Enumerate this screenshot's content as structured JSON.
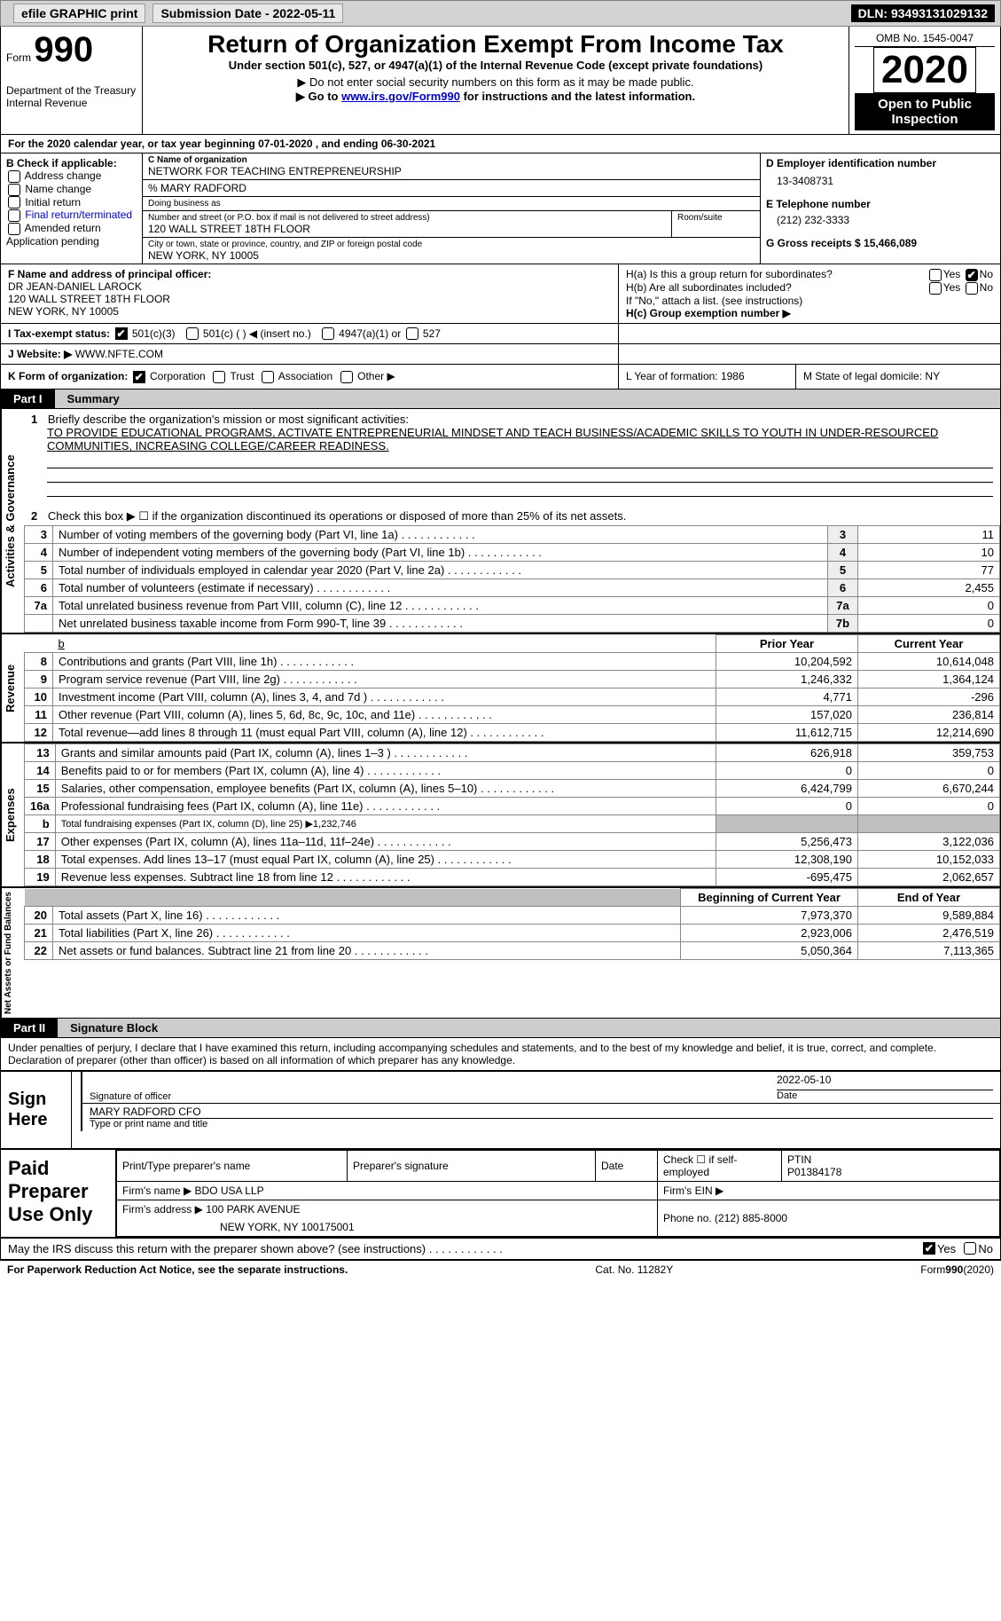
{
  "topbar": {
    "efile": "efile GRAPHIC print",
    "sub_label": "Submission Date - 2022-05-11",
    "dln": "DLN: 93493131029132"
  },
  "header": {
    "form": "Form",
    "form_no": "990",
    "dept": "Department of the Treasury",
    "irs": "Internal Revenue",
    "title": "Return of Organization Exempt From Income Tax",
    "subtitle": "Under section 501(c), 527, or 4947(a)(1) of the Internal Revenue Code (except private foundations)",
    "note1": "▶ Do not enter social security numbers on this form as it may be made public.",
    "note2_pre": "▶ Go to ",
    "note2_link": "www.irs.gov/Form990",
    "note2_post": " for instructions and the latest information.",
    "omb": "OMB No. 1545-0047",
    "year": "2020",
    "open": "Open to Public Inspection"
  },
  "line_a": "For the 2020 calendar year, or tax year beginning 07-01-2020   , and ending 06-30-2021",
  "box_b": {
    "label": "B Check if applicable:",
    "items": [
      "Address change",
      "Name change",
      "Initial return",
      "Final return/terminated",
      "Amended return",
      "Application pending"
    ]
  },
  "box_c": {
    "c_label": "C Name of organization",
    "name": "NETWORK FOR TEACHING ENTREPRENEURSHIP",
    "care_of": "% MARY RADFORD",
    "dba": "Doing business as",
    "addr_label": "Number and street (or P.O. box if mail is not delivered to street address)",
    "room": "Room/suite",
    "addr": "120 WALL STREET 18TH FLOOR",
    "city_label": "City or town, state or province, country, and ZIP or foreign postal code",
    "city": "NEW YORK, NY  10005"
  },
  "box_d": {
    "label": "D Employer identification number",
    "value": "13-3408731"
  },
  "box_e": {
    "label": "E Telephone number",
    "value": "(212) 232-3333"
  },
  "box_g": {
    "label": "G Gross receipts $ 15,466,089"
  },
  "box_f": {
    "label": "F  Name and address of principal officer:",
    "l1": "DR JEAN-DANIEL LAROCK",
    "l2": "120 WALL STREET 18TH FLOOR",
    "l3": "NEW YORK, NY  10005"
  },
  "box_h": {
    "a_q": "H(a)  Is this a group return for subordinates?",
    "b_q": "H(b)  Are all subordinates included?",
    "b_note": "If \"No,\" attach a list. (see instructions)",
    "c": "H(c)  Group exemption number ▶"
  },
  "box_i": {
    "label": "I    Tax-exempt status:",
    "o1": "501(c)(3)",
    "o2": "501(c) (  ) ◀ (insert no.)",
    "o3": "4947(a)(1) or",
    "o4": "527"
  },
  "box_j": {
    "label": "J    Website: ▶",
    "value": "WWW.NFTE.COM"
  },
  "box_k": {
    "label": "K Form of organization:",
    "o1": "Corporation",
    "o2": "Trust",
    "o3": "Association",
    "o4": "Other ▶"
  },
  "box_l": {
    "label": "L Year of formation: 1986"
  },
  "box_m": {
    "label": "M State of legal domicile: NY"
  },
  "part1": {
    "tab": "Part I",
    "title": "Summary"
  },
  "gov": {
    "label": "Activities & Governance",
    "l1_label": "Briefly describe the organization's mission or most significant activities:",
    "l1_text": "TO PROVIDE EDUCATIONAL PROGRAMS, ACTIVATE ENTREPRENEURIAL MINDSET AND TEACH BUSINESS/ACADEMIC SKILLS TO YOUTH IN UNDER-RESOURCED COMMUNITIES, INCREASING COLLEGE/CAREER READINESS.",
    "l2": "Check this box ▶ ☐ if the organization discontinued its operations or disposed of more than 25% of its net assets.",
    "lines": [
      {
        "n": "3",
        "d": "Number of voting members of the governing body (Part VI, line 1a)",
        "b": "3",
        "v": "11"
      },
      {
        "n": "4",
        "d": "Number of independent voting members of the governing body (Part VI, line 1b)",
        "b": "4",
        "v": "10"
      },
      {
        "n": "5",
        "d": "Total number of individuals employed in calendar year 2020 (Part V, line 2a)",
        "b": "5",
        "v": "77"
      },
      {
        "n": "6",
        "d": "Total number of volunteers (estimate if necessary)",
        "b": "6",
        "v": "2,455"
      },
      {
        "n": "7a",
        "d": "Total unrelated business revenue from Part VIII, column (C), line 12",
        "b": "7a",
        "v": "0"
      },
      {
        "n": "",
        "d": "Net unrelated business taxable income from Form 990-T, line 39",
        "b": "7b",
        "v": "0"
      }
    ]
  },
  "rev": {
    "label": "Revenue",
    "h_prior": "Prior Year",
    "h_curr": "Current Year",
    "lines": [
      {
        "n": "8",
        "d": "Contributions and grants (Part VIII, line 1h)",
        "p": "10,204,592",
        "c": "10,614,048"
      },
      {
        "n": "9",
        "d": "Program service revenue (Part VIII, line 2g)",
        "p": "1,246,332",
        "c": "1,364,124"
      },
      {
        "n": "10",
        "d": "Investment income (Part VIII, column (A), lines 3, 4, and 7d )",
        "p": "4,771",
        "c": "-296"
      },
      {
        "n": "11",
        "d": "Other revenue (Part VIII, column (A), lines 5, 6d, 8c, 9c, 10c, and 11e)",
        "p": "157,020",
        "c": "236,814"
      },
      {
        "n": "12",
        "d": "Total revenue—add lines 8 through 11 (must equal Part VIII, column (A), line 12)",
        "p": "11,612,715",
        "c": "12,214,690"
      }
    ]
  },
  "exp": {
    "label": "Expenses",
    "lines": [
      {
        "n": "13",
        "d": "Grants and similar amounts paid (Part IX, column (A), lines 1–3 )",
        "p": "626,918",
        "c": "359,753"
      },
      {
        "n": "14",
        "d": "Benefits paid to or for members (Part IX, column (A), line 4)",
        "p": "0",
        "c": "0"
      },
      {
        "n": "15",
        "d": "Salaries, other compensation, employee benefits (Part IX, column (A), lines 5–10)",
        "p": "6,424,799",
        "c": "6,670,244"
      },
      {
        "n": "16a",
        "d": "Professional fundraising fees (Part IX, column (A), line 11e)",
        "p": "0",
        "c": "0"
      },
      {
        "n": "b",
        "d": "Total fundraising expenses (Part IX, column (D), line 25) ▶1,232,746",
        "grey": true
      },
      {
        "n": "17",
        "d": "Other expenses (Part IX, column (A), lines 11a–11d, 11f–24e)",
        "p": "5,256,473",
        "c": "3,122,036"
      },
      {
        "n": "18",
        "d": "Total expenses. Add lines 13–17 (must equal Part IX, column (A), line 25)",
        "p": "12,308,190",
        "c": "10,152,033"
      },
      {
        "n": "19",
        "d": "Revenue less expenses. Subtract line 18 from line 12",
        "p": "-695,475",
        "c": "2,062,657"
      }
    ]
  },
  "net": {
    "label": "Net Assets or Fund Balances",
    "h_beg": "Beginning of Current Year",
    "h_end": "End of Year",
    "lines": [
      {
        "n": "20",
        "d": "Total assets (Part X, line 16)",
        "p": "7,973,370",
        "c": "9,589,884"
      },
      {
        "n": "21",
        "d": "Total liabilities (Part X, line 26)",
        "p": "2,923,006",
        "c": "2,476,519"
      },
      {
        "n": "22",
        "d": "Net assets or fund balances. Subtract line 21 from line 20",
        "p": "5,050,364",
        "c": "7,113,365"
      }
    ]
  },
  "part2": {
    "tab": "Part II",
    "title": "Signature Block"
  },
  "declare": "Under penalties of perjury, I declare that I have examined this return, including accompanying schedules and statements, and to the best of my knowledge and belief, it is true, correct, and complete. Declaration of preparer (other than officer) is based on all information of which preparer has any knowledge.",
  "sign": {
    "label": "Sign Here",
    "sig_officer": "Signature of officer",
    "date_val": "2022-05-10",
    "date_lbl": "Date",
    "name_val": "MARY RADFORD CFO",
    "name_lbl": "Type or print name and title"
  },
  "prep": {
    "label": "Paid Preparer Use Only",
    "h1": "Print/Type preparer's name",
    "h2": "Preparer's signature",
    "h3": "Date",
    "h4_pre": "Check ☐ if self-employed",
    "h5": "PTIN",
    "ptin": "P01384178",
    "firm_name_lbl": "Firm's name    ▶",
    "firm_name": "BDO USA LLP",
    "firm_ein_lbl": "Firm's EIN ▶",
    "firm_addr_lbl": "Firm's address ▶",
    "firm_addr1": "100 PARK AVENUE",
    "firm_addr2": "NEW YORK, NY  100175001",
    "phone_lbl": "Phone no. (212) 885-8000"
  },
  "discuss": "May the IRS discuss this return with the preparer shown above? (see instructions)",
  "footer": {
    "left": "For Paperwork Reduction Act Notice, see the separate instructions.",
    "mid": "Cat. No. 11282Y",
    "right_pre": "Form ",
    "right_bold": "990",
    "right_post": " (2020)"
  },
  "yesno": {
    "yes": "Yes",
    "no": "No"
  }
}
